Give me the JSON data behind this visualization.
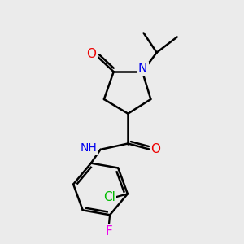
{
  "background_color": "#ebebeb",
  "bond_color": "#000000",
  "N_color": "#0000ee",
  "O_color": "#ee0000",
  "Cl_color": "#00bb00",
  "F_color": "#ee00ee",
  "bond_width": 1.8,
  "figsize": [
    3.0,
    3.0
  ],
  "dpi": 100,
  "xlim": [
    0,
    10
  ],
  "ylim": [
    0,
    10
  ]
}
